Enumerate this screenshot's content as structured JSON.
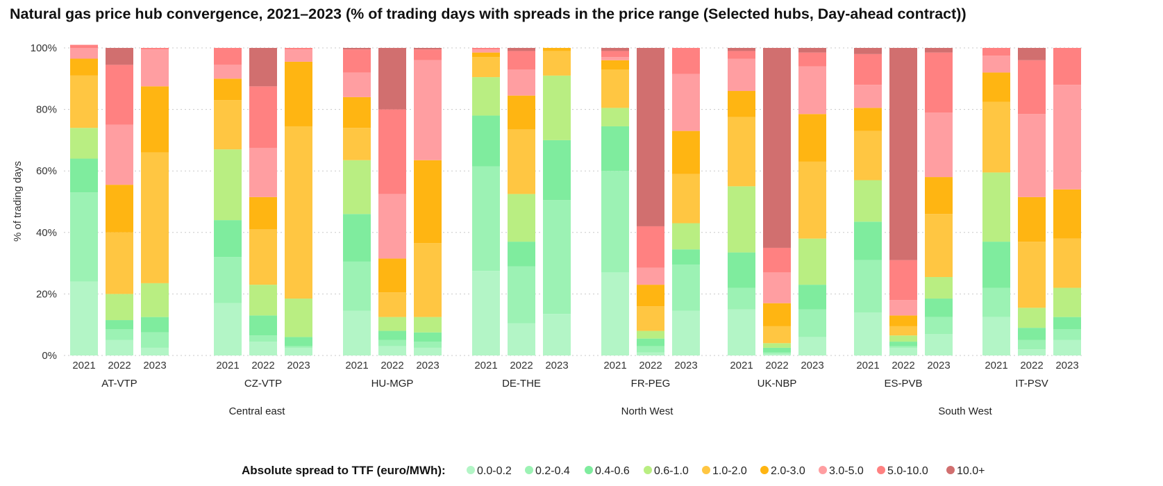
{
  "title": "Natural gas price hub convergence,  2021–2023 (% of trading days with spreads in the price range (Selected hubs, Day-ahead contract))",
  "chart_data": {
    "type": "bar",
    "stacked": true,
    "title": "Natural gas price hub convergence,  2021–2023 (% of trading days with spreads in the price range (Selected hubs, Day-ahead contract))",
    "ylabel": "% of trading days",
    "ylim": [
      0,
      100
    ],
    "yticks": [
      "0%",
      "20%",
      "40%",
      "60%",
      "80%",
      "100%"
    ],
    "grid": "horizontal dotted",
    "years": [
      "2021",
      "2022",
      "2023"
    ],
    "legend_title": "Absolute spread to TTF (euro/MWh):",
    "legend_position": "bottom",
    "ranges": [
      {
        "label": "0.0-0.2",
        "color": "#b3f5c6"
      },
      {
        "label": "0.2-0.4",
        "color": "#9cf2b4"
      },
      {
        "label": "0.4-0.6",
        "color": "#7fec9e"
      },
      {
        "label": "0.6-1.0",
        "color": "#b9ee82"
      },
      {
        "label": "1.0-2.0",
        "color": "#ffc642"
      },
      {
        "label": "2.0-3.0",
        "color": "#ffb512"
      },
      {
        "label": "3.0-5.0",
        "color": "#ff9ea1"
      },
      {
        "label": "5.0-10.0",
        "color": "#ff8181"
      },
      {
        "label": "10.0+",
        "color": "#d16f6f"
      }
    ],
    "regions": [
      {
        "name": "Central east",
        "hubs": [
          "AT-VTP",
          "CZ-VTP",
          "HU-MGP"
        ]
      },
      {
        "name": "North West",
        "hubs": [
          "DE-THE",
          "FR-PEG",
          "UK-NBP"
        ]
      },
      {
        "name": "South West",
        "hubs": [
          "ES-PVB",
          "IT-PSV"
        ]
      }
    ],
    "hubs": [
      {
        "name": "AT-VTP",
        "bars": [
          {
            "year": "2021",
            "values": [
              24,
              29,
              11,
              10,
              17,
              5.5,
              3.5,
              1,
              0
            ]
          },
          {
            "year": "2022",
            "values": [
              5,
              3.5,
              3,
              8.5,
              20,
              15.5,
              19.5,
              19.5,
              5.5
            ]
          },
          {
            "year": "2023",
            "values": [
              2.5,
              5,
              5,
              11,
              42.5,
              21.5,
              12,
              0.5,
              0
            ]
          }
        ]
      },
      {
        "name": "CZ-VTP",
        "bars": [
          {
            "year": "2021",
            "values": [
              17,
              15,
              12,
              23,
              16,
              7,
              4.5,
              5.5,
              0
            ]
          },
          {
            "year": "2022",
            "values": [
              4.5,
              2,
              6.5,
              10,
              18,
              10.5,
              16,
              20,
              12.5
            ]
          },
          {
            "year": "2023",
            "values": [
              2.5,
              0.5,
              3,
              12.5,
              56,
              21,
              4,
              0.5,
              0
            ]
          }
        ]
      },
      {
        "name": "HU-MGP",
        "bars": [
          {
            "year": "2021",
            "values": [
              14.5,
              16,
              15.5,
              17.5,
              10.5,
              10,
              8,
              7.5,
              0.5
            ]
          },
          {
            "year": "2022",
            "values": [
              3,
              2,
              3,
              4.5,
              8,
              11,
              21,
              27.5,
              20
            ]
          },
          {
            "year": "2023",
            "values": [
              2.5,
              2,
              3,
              5,
              24,
              27,
              32.5,
              3.5,
              0.5
            ]
          }
        ]
      },
      {
        "name": "DE-THE",
        "bars": [
          {
            "year": "2021",
            "values": [
              27.5,
              34,
              16.5,
              12.5,
              6.5,
              1.5,
              1,
              0.5,
              0
            ]
          },
          {
            "year": "2022",
            "values": [
              10.5,
              18.5,
              8,
              15.5,
              21,
              11,
              8.5,
              6,
              1
            ]
          },
          {
            "year": "2023",
            "values": [
              13.5,
              37,
              19.5,
              21,
              8,
              1,
              0,
              0,
              0
            ]
          }
        ]
      },
      {
        "name": "FR-PEG",
        "bars": [
          {
            "year": "2021",
            "values": [
              27,
              33,
              14.5,
              6,
              12.5,
              3,
              1,
              2,
              1
            ]
          },
          {
            "year": "2022",
            "values": [
              1,
              2,
              2.5,
              2.5,
              8,
              7,
              5.5,
              13.5,
              58
            ]
          },
          {
            "year": "2023",
            "values": [
              14.5,
              15,
              5,
              8.5,
              16,
              14,
              18.5,
              8.5,
              0
            ]
          }
        ]
      },
      {
        "name": "UK-NBP",
        "bars": [
          {
            "year": "2021",
            "values": [
              15,
              7,
              11.5,
              21.5,
              22.5,
              8.5,
              10.5,
              2.5,
              1
            ]
          },
          {
            "year": "2022",
            "values": [
              0.5,
              0.5,
              1.5,
              1.5,
              5.5,
              7.5,
              10,
              8,
              65
            ]
          },
          {
            "year": "2023",
            "values": [
              6,
              9,
              8,
              15,
              25,
              15.5,
              15.5,
              4.5,
              1.5
            ]
          }
        ]
      },
      {
        "name": "ES-PVB",
        "bars": [
          {
            "year": "2021",
            "values": [
              14,
              17,
              12.5,
              13.5,
              16,
              7.5,
              7.5,
              10,
              2
            ]
          },
          {
            "year": "2022",
            "values": [
              2.5,
              0.5,
              1.5,
              2,
              3,
              3.5,
              5,
              13,
              69
            ]
          },
          {
            "year": "2023",
            "values": [
              7,
              5.5,
              6,
              7,
              20.5,
              12,
              21,
              19.5,
              1.5
            ]
          }
        ]
      },
      {
        "name": "IT-PSV",
        "bars": [
          {
            "year": "2021",
            "values": [
              12.5,
              9.5,
              15,
              22.5,
              23,
              9.5,
              5.5,
              2.5,
              0
            ]
          },
          {
            "year": "2022",
            "values": [
              2,
              3,
              4,
              6.5,
              21.5,
              14.5,
              27,
              17.5,
              4
            ]
          },
          {
            "year": "2023",
            "values": [
              5,
              3.5,
              4,
              9.5,
              16,
              16,
              34,
              12,
              0
            ]
          }
        ]
      }
    ]
  }
}
